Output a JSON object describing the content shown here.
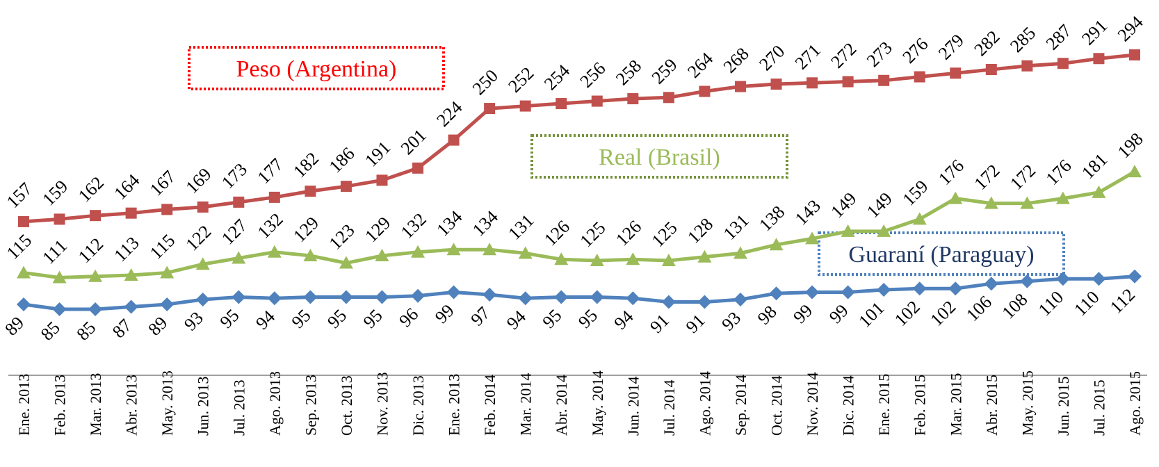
{
  "chart_data": {
    "type": "line",
    "categories": [
      "Ene. 2013",
      "Feb. 2013",
      "Mar. 2013",
      "Abr. 2013",
      "May. 2013",
      "Jun. 2013",
      "Jul. 2013",
      "Ago. 2013",
      "Sep. 2013",
      "Oct. 2013",
      "Nov. 2013",
      "Dic. 2013",
      "Ene. 2013",
      "Feb. 2014",
      "Mar. 2014",
      "Abr. 2014",
      "May. 2014",
      "Jun. 2014",
      "Jul. 2014",
      "Ago. 2014",
      "Sep. 2014",
      "Oct. 2014",
      "Nov. 2014",
      "Dic. 2014",
      "Ene. 2015",
      "Feb. 2015",
      "Mar. 2015",
      "Abr. 2015",
      "May. 2015",
      "Jun. 2015",
      "Jul. 2015",
      "Ago. 2015"
    ],
    "series": [
      {
        "name": "Peso (Argentina)",
        "color": "#c0504d",
        "marker": "square",
        "label_position": "above",
        "values": [
          157,
          159,
          162,
          164,
          167,
          169,
          173,
          177,
          182,
          186,
          191,
          201,
          224,
          250,
          252,
          254,
          256,
          258,
          259,
          264,
          268,
          270,
          271,
          272,
          273,
          276,
          279,
          282,
          285,
          287,
          291,
          294
        ]
      },
      {
        "name": "Real (Brasil)",
        "color": "#9bbb59",
        "marker": "triangle",
        "label_position": "above",
        "values": [
          115,
          111,
          112,
          113,
          115,
          122,
          127,
          132,
          129,
          123,
          129,
          132,
          134,
          134,
          131,
          126,
          125,
          126,
          125,
          128,
          131,
          138,
          143,
          149,
          149,
          159,
          176,
          172,
          172,
          176,
          181,
          198
        ]
      },
      {
        "name": "Guaraní (Paraguay)",
        "color": "#4f81bd",
        "marker": "diamond",
        "label_position": "below",
        "values": [
          89,
          85,
          85,
          87,
          89,
          93,
          95,
          94,
          95,
          95,
          95,
          96,
          99,
          97,
          94,
          95,
          95,
          94,
          91,
          91,
          93,
          98,
          99,
          99,
          101,
          102,
          102,
          106,
          108,
          110,
          110,
          112
        ]
      }
    ],
    "legend_boxes": [
      {
        "series": "Peso (Argentina)",
        "placement": "top-left",
        "text_color": "#ff0000",
        "border_color": "#ff0000"
      },
      {
        "series": "Real (Brasil)",
        "placement": "center",
        "text_color": "#9bbb59",
        "border_color": "#76923c"
      },
      {
        "series": "Guaraní (Paraguay)",
        "placement": "right",
        "text_color": "#1f3864",
        "border_color": "#4f81bd"
      }
    ],
    "title": "",
    "xlabel": "",
    "ylabel": "",
    "grid": false,
    "axis_color": "#808080"
  }
}
